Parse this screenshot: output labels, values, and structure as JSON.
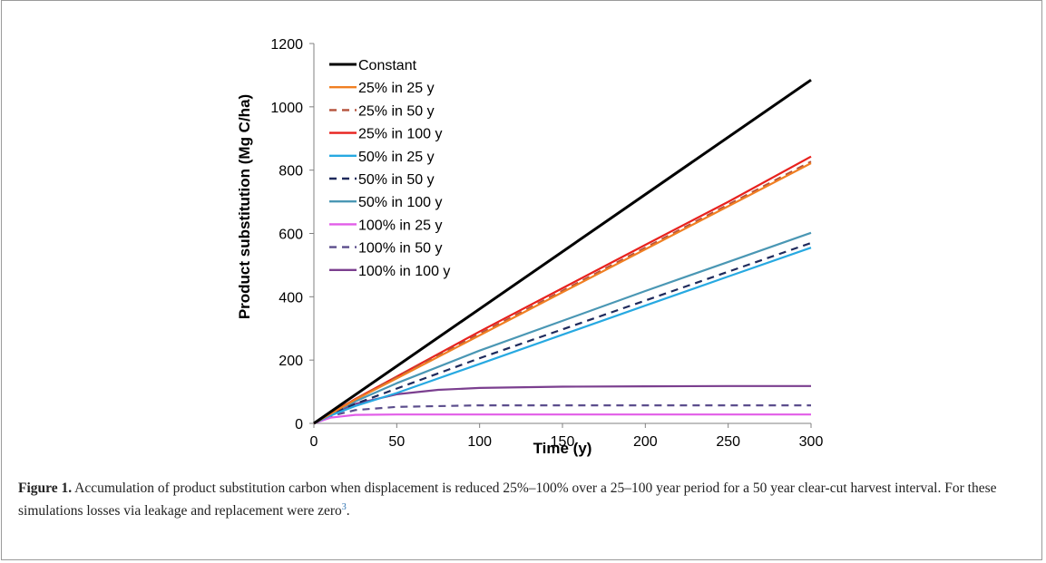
{
  "chart_data": {
    "type": "line",
    "title": "",
    "xlabel": "Time (y)",
    "ylabel": "Product substitution (Mg C/ha)",
    "xlim": [
      0,
      300
    ],
    "ylim": [
      0,
      1200
    ],
    "xticks": [
      0,
      50,
      100,
      150,
      200,
      250,
      300
    ],
    "yticks": [
      0,
      200,
      400,
      600,
      800,
      1000,
      1200
    ],
    "grid": false,
    "legend_position": "top-left",
    "series": [
      {
        "name": "Constant",
        "color": "#000000",
        "dash": "solid",
        "x": [
          0,
          300
        ],
        "y": [
          0,
          1085
        ]
      },
      {
        "name": "25% in 25 y",
        "color": "#f07f22",
        "dash": "solid",
        "x": [
          0,
          10,
          25,
          50,
          100,
          150,
          200,
          250,
          300
        ],
        "y": [
          0,
          30,
          75,
          142,
          278,
          414,
          550,
          686,
          822
        ]
      },
      {
        "name": "25% in 50 y",
        "color": "#b5523b",
        "dash": "dashed",
        "x": [
          0,
          10,
          25,
          50,
          100,
          150,
          200,
          250,
          300
        ],
        "y": [
          0,
          30,
          76,
          146,
          283,
          419,
          555,
          691,
          827
        ]
      },
      {
        "name": "25% in 100 y",
        "color": "#e8211d",
        "dash": "solid",
        "x": [
          0,
          10,
          25,
          50,
          100,
          150,
          200,
          250,
          300
        ],
        "y": [
          0,
          31,
          77,
          148,
          290,
          427,
          564,
          700,
          843
        ]
      },
      {
        "name": "50% in 25 y",
        "color": "#27a9e1",
        "dash": "solid",
        "x": [
          0,
          10,
          25,
          50,
          100,
          150,
          200,
          250,
          300
        ],
        "y": [
          0,
          25,
          55,
          96,
          188,
          280,
          372,
          464,
          555
        ]
      },
      {
        "name": "50% in 50 y",
        "color": "#1f2a5c",
        "dash": "dashed",
        "x": [
          0,
          10,
          25,
          50,
          100,
          150,
          200,
          250,
          300
        ],
        "y": [
          0,
          28,
          62,
          110,
          206,
          297,
          388,
          479,
          570
        ]
      },
      {
        "name": "50% in 100 y",
        "color": "#4a97b4",
        "dash": "solid",
        "x": [
          0,
          10,
          25,
          50,
          100,
          150,
          200,
          250,
          300
        ],
        "y": [
          0,
          29,
          70,
          127,
          230,
          324,
          418,
          510,
          602
        ]
      },
      {
        "name": "100% in 25 y",
        "color": "#e25de8",
        "dash": "solid",
        "x": [
          0,
          10,
          25,
          50,
          100,
          150,
          200,
          250,
          300
        ],
        "y": [
          0,
          18,
          27,
          28,
          28,
          28,
          28,
          28,
          28
        ]
      },
      {
        "name": "100% in 50 y",
        "color": "#5b4d8c",
        "dash": "dashed",
        "x": [
          0,
          10,
          25,
          50,
          100,
          150,
          200,
          250,
          300
        ],
        "y": [
          0,
          23,
          42,
          52,
          57,
          57,
          57,
          57,
          57
        ]
      },
      {
        "name": "100% in 100 y",
        "color": "#7b3f8f",
        "dash": "solid",
        "x": [
          0,
          10,
          25,
          50,
          75,
          100,
          150,
          200,
          250,
          300
        ],
        "y": [
          0,
          27,
          62,
          92,
          106,
          112,
          116,
          117,
          118,
          118
        ]
      }
    ]
  },
  "caption": {
    "label": "Figure 1.",
    "text": "Accumulation of product substitution carbon when displacement is reduced 25%–100% over a 25–100 year period for a 50 year clear-cut harvest interval. For these simulations losses via leakage and replacement were zero",
    "footnote_ref": "3",
    "end": "."
  }
}
